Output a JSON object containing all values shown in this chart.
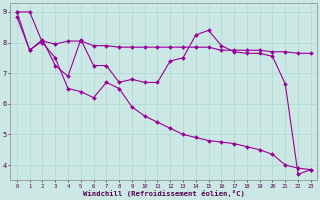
{
  "xlabel": "Windchill (Refroidissement éolien,°C)",
  "bg_color": "#cce8e4",
  "line_color": "#990099",
  "grid_color": "#aad8d4",
  "xlim": [
    -0.5,
    23.5
  ],
  "ylim": [
    3.5,
    9.3
  ],
  "xticks": [
    0,
    1,
    2,
    3,
    4,
    5,
    6,
    7,
    8,
    9,
    10,
    11,
    12,
    13,
    14,
    15,
    16,
    17,
    18,
    19,
    20,
    21,
    22,
    23
  ],
  "yticks": [
    4,
    5,
    6,
    7,
    8,
    9
  ],
  "line1_x": [
    0,
    1,
    2,
    3,
    4,
    5,
    6,
    7,
    8,
    9,
    10,
    11,
    12,
    13,
    14,
    15,
    16,
    17,
    18,
    19,
    20,
    21,
    22,
    23
  ],
  "line1_y": [
    9.0,
    7.75,
    8.1,
    7.25,
    6.9,
    8.1,
    7.25,
    7.25,
    6.7,
    6.8,
    6.7,
    6.7,
    7.4,
    7.5,
    8.25,
    8.4,
    7.9,
    7.7,
    7.65,
    7.65,
    7.55,
    6.65,
    3.7,
    3.85
  ],
  "line2_x": [
    0,
    1,
    2,
    3,
    4,
    5,
    6,
    7,
    8,
    9,
    10,
    11,
    12,
    13,
    14,
    15,
    16,
    17,
    18,
    19,
    20,
    21,
    22,
    23
  ],
  "line2_y": [
    8.85,
    7.75,
    8.05,
    7.95,
    8.05,
    8.05,
    7.9,
    7.9,
    7.85,
    7.85,
    7.85,
    7.85,
    7.85,
    7.85,
    7.85,
    7.85,
    7.75,
    7.75,
    7.75,
    7.75,
    7.7,
    7.7,
    7.65,
    7.65
  ],
  "line3_x": [
    0,
    1,
    2,
    3,
    4,
    5,
    6,
    7,
    8,
    9,
    10,
    11,
    12,
    13,
    14,
    15,
    16,
    17,
    18,
    19,
    20,
    21,
    22,
    23
  ],
  "line3_y": [
    9.0,
    9.0,
    8.0,
    7.5,
    6.5,
    6.4,
    6.2,
    6.7,
    6.5,
    5.9,
    5.6,
    5.4,
    5.2,
    5.0,
    4.9,
    4.8,
    4.75,
    4.7,
    4.6,
    4.5,
    4.35,
    4.0,
    3.9,
    3.85
  ]
}
